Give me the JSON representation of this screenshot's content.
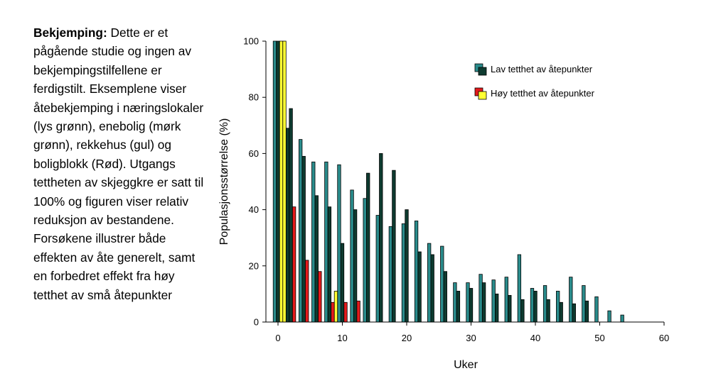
{
  "caption": {
    "heading": "Bekjemping:",
    "text": " Dette er et pågående studie og ingen av bekjempingstilfellene er ferdigstilt. Eksemplene viser åtebekjemping i næringslokaler (lys grønn), enebolig (mørk grønn), rekkehus (gul) og boligblokk (Rød). Utgangs tettheten av skjeggkre er satt til 100% og figuren viser relativ reduksjon av bestandene. Forsøkene illustrer både effekten av åte generelt, samt en forbedret effekt fra høy tetthet av små åtepunkter"
  },
  "chart_data": {
    "type": "bar",
    "title": "",
    "xlabel": "Uker",
    "ylabel": "Populasjonsstørrelse (%)",
    "xlim": [
      -1,
      60
    ],
    "ylim": [
      0,
      100
    ],
    "xticks": [
      0,
      10,
      20,
      30,
      40,
      50,
      60
    ],
    "yticks": [
      0,
      20,
      40,
      60,
      80,
      100
    ],
    "grid": false,
    "legend_position": "top-right",
    "legend": [
      {
        "label": "Lav tetthet av åtepunkter",
        "swatch_colors": [
          "#2a8c8c",
          "#0e3b30"
        ]
      },
      {
        "label": "Høy tetthet av åtepunkter",
        "swatch_colors": [
          "#e31a1c",
          "#ffff33"
        ]
      }
    ],
    "series": [
      {
        "color": "#2a8c8c",
        "x": [
          -0.5,
          3.5,
          5.5,
          7.5,
          9.5,
          11.5,
          13.5,
          15.5,
          17.5,
          19.5,
          21.5,
          23.5,
          25.5,
          27.5,
          29.5,
          31.5,
          33.5,
          35.5,
          37.5,
          39.5,
          41.5,
          43.5,
          45.5,
          47.5,
          49.5,
          51.5,
          53.5
        ],
        "values": [
          100,
          65,
          57,
          57,
          56,
          47,
          44,
          38,
          34,
          35,
          36,
          28,
          27,
          14,
          14,
          17,
          15,
          16,
          24,
          12,
          13,
          11,
          16,
          13,
          9,
          4,
          2.5
        ]
      },
      {
        "color": "#0e3b30",
        "x": [
          0,
          1.5,
          2,
          4,
          6,
          8,
          10,
          12,
          14,
          16,
          18,
          20,
          22,
          24,
          26,
          28,
          30,
          32,
          34,
          36,
          38,
          40,
          42,
          44,
          46,
          48
        ],
        "values": [
          100,
          69,
          76,
          59,
          45,
          41,
          28,
          40,
          53,
          60,
          54,
          40,
          25,
          24,
          18,
          11,
          12,
          14,
          10,
          9.5,
          8,
          11,
          8,
          7,
          6.5,
          7.5
        ]
      },
      {
        "color": "#ffff33",
        "x": [
          0.5,
          1,
          9
        ],
        "values": [
          100,
          100,
          11
        ]
      },
      {
        "color": "#e31a1c",
        "x": [
          2.5,
          4.5,
          6.5,
          8.5,
          10.5,
          12.5
        ],
        "values": [
          41,
          22,
          18,
          7,
          7,
          7.5
        ]
      }
    ]
  }
}
